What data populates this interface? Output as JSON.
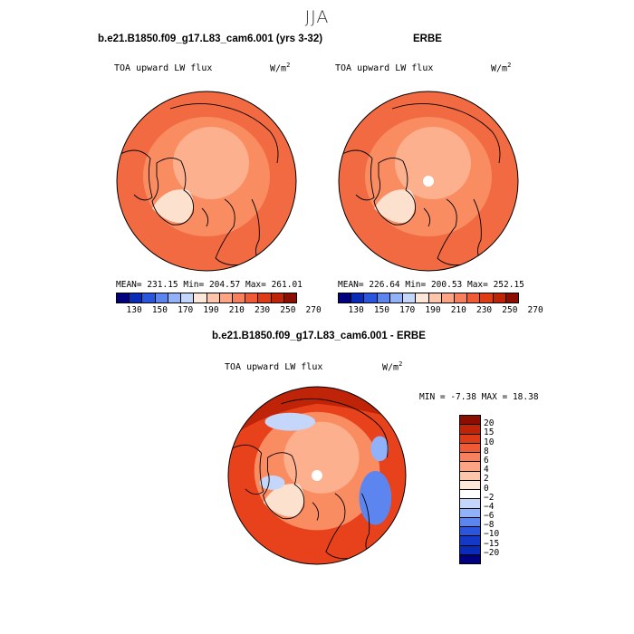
{
  "title": "JJA",
  "panels": [
    {
      "title": "b.e21.B1850.f09_g17.L83_cam6.001 (yrs 3-32)",
      "variable": "TOA upward LW flux",
      "units": "W/m",
      "units_sup": "2",
      "stats_text": "MEAN= 231.15  Min= 204.57  Max= 261.01",
      "field_colors": [
        "#f26a41",
        "#fa8c62",
        "#fcb08e",
        "#fde1cf"
      ]
    },
    {
      "title": "ERBE",
      "variable": "TOA upward LW flux",
      "units": "W/m",
      "units_sup": "2",
      "stats_text": "MEAN= 226.64  Min= 200.53  Max= 252.15",
      "field_colors": [
        "#f26a41",
        "#fa8c62",
        "#fcb08e",
        "#fde1cf"
      ]
    },
    {
      "title": "b.e21.B1850.f09_g17.L83_cam6.001 - ERBE",
      "variable": "TOA upward LW flux",
      "units": "W/m",
      "units_sup": "2",
      "stats_text": "MIN =  -7.38 MAX =  18.38",
      "field_colors": [
        "#e8421c",
        "#fa8c62",
        "#fcb08e",
        "#fde1cf"
      ]
    }
  ],
  "abs_colorbar": {
    "colors": [
      "#00007f",
      "#0a2ab8",
      "#2a55dd",
      "#5c85ef",
      "#91b2f8",
      "#c5d6fb",
      "#fde7d9",
      "#fdc5a9",
      "#fca483",
      "#f9805c",
      "#f05b35",
      "#de3b17",
      "#c02408",
      "#8c0e00"
    ],
    "tick_labels": [
      "130",
      "150",
      "170",
      "190",
      "210",
      "230",
      "250",
      "270"
    ]
  },
  "diff_colorbar": {
    "colors": [
      "#8c0e00",
      "#c02408",
      "#de3b17",
      "#f05b35",
      "#f9805c",
      "#fca483",
      "#fdc5a9",
      "#fde7d9",
      "#ffffff",
      "#c5d6fb",
      "#91b2f8",
      "#5c85ef",
      "#2a55dd",
      "#1439c8",
      "#0a2ab8",
      "#00007f"
    ],
    "tick_labels": [
      "20",
      "15",
      "10",
      "8",
      "6",
      "4",
      "2",
      "0",
      "−2",
      "−4",
      "−6",
      "−8",
      "−10",
      "−15",
      "−20"
    ]
  }
}
